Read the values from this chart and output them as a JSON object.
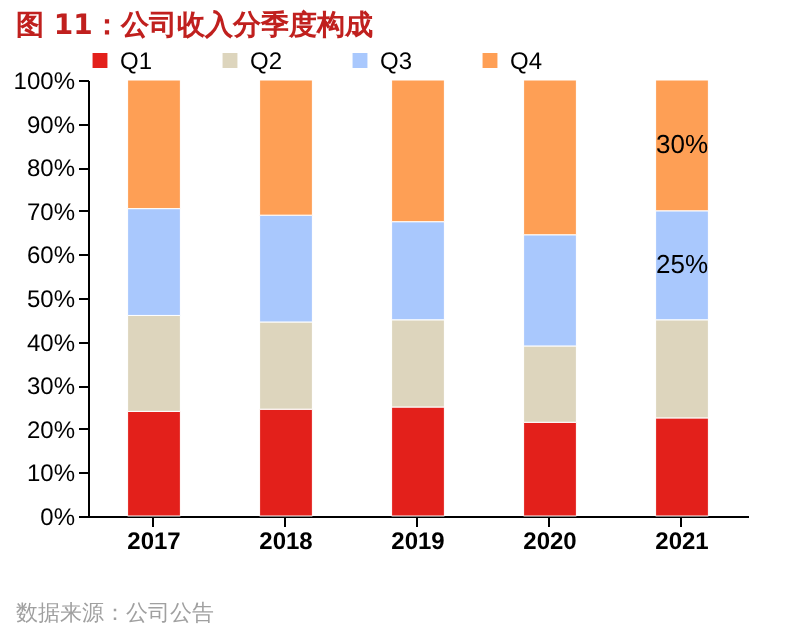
{
  "chart_data": {
    "type": "bar",
    "title": "图 11：公司收入分季度构成",
    "stacked": true,
    "categories": [
      "2017",
      "2018",
      "2019",
      "2020",
      "2021"
    ],
    "series": [
      {
        "name": "Q1",
        "color": "#e3201b",
        "values": [
          24,
          24.5,
          25,
          21.5,
          22.5
        ]
      },
      {
        "name": "Q2",
        "color": "#ddd5bd",
        "values": [
          22,
          20,
          20,
          17.5,
          22.5
        ]
      },
      {
        "name": "Q3",
        "color": "#a9c8fd",
        "values": [
          24.5,
          24.5,
          22.5,
          25.5,
          25
        ],
        "value_labels": [
          null,
          null,
          null,
          null,
          "25%"
        ]
      },
      {
        "name": "Q4",
        "color": "#fe9f55",
        "values": [
          29.5,
          31,
          32.5,
          35.5,
          30
        ],
        "value_labels": [
          null,
          null,
          null,
          null,
          "30%"
        ]
      }
    ],
    "ylim": [
      0,
      100
    ],
    "yticks": [
      {
        "value": 0,
        "label": "0%"
      },
      {
        "value": 10,
        "label": "10%"
      },
      {
        "value": 20,
        "label": "20%"
      },
      {
        "value": 30,
        "label": "30%"
      },
      {
        "value": 40,
        "label": "40%"
      },
      {
        "value": 50,
        "label": "50%"
      },
      {
        "value": 60,
        "label": "60%"
      },
      {
        "value": 70,
        "label": "70%"
      },
      {
        "value": 80,
        "label": "80%"
      },
      {
        "value": 90,
        "label": "90%"
      },
      {
        "value": 100,
        "label": "100%"
      }
    ],
    "grid": false,
    "legend": "top",
    "annotations": [
      "数据来源：公司公告"
    ]
  }
}
